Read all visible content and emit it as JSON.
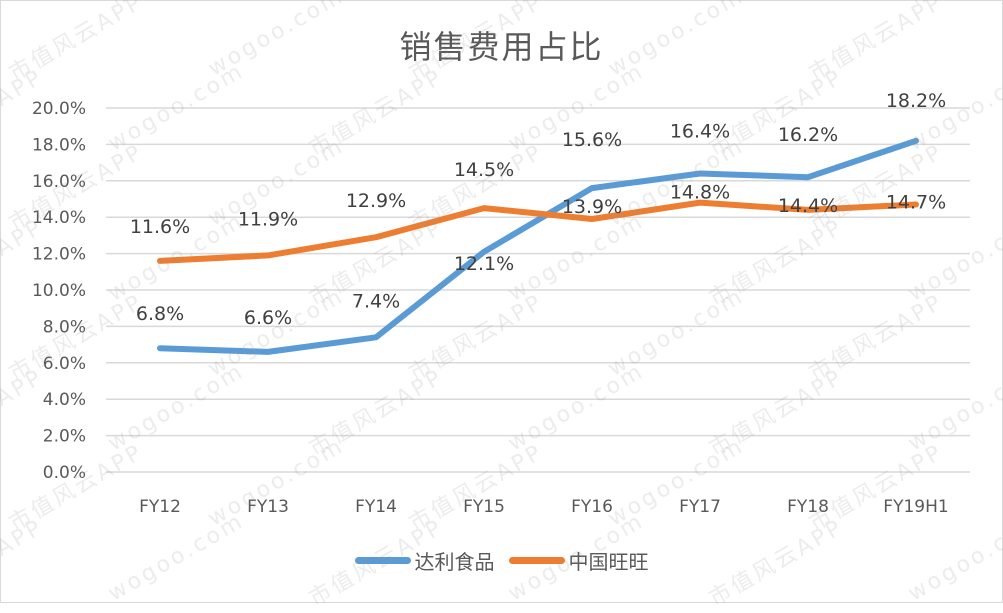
{
  "chart_data": {
    "type": "line",
    "title": "销售费用占比",
    "xlabel": "",
    "ylabel": "",
    "categories": [
      "FY12",
      "FY13",
      "FY14",
      "FY15",
      "FY16",
      "FY17",
      "FY18",
      "FY19H1"
    ],
    "series": [
      {
        "name": "达利食品",
        "color": "#5b9bd5",
        "values": [
          6.8,
          6.6,
          7.4,
          12.1,
          15.6,
          16.4,
          16.2,
          18.2
        ]
      },
      {
        "name": "中国旺旺",
        "color": "#ed7d31",
        "values": [
          11.6,
          11.9,
          12.9,
          14.5,
          13.9,
          14.8,
          14.4,
          14.7
        ]
      }
    ],
    "data_labels": {
      "达利食品": [
        "6.8%",
        "6.6%",
        "7.4%",
        "12.1%",
        "15.6%",
        "16.4%",
        "16.2%",
        "18.2%"
      ],
      "中国旺旺": [
        "11.6%",
        "11.9%",
        "12.9%",
        "14.5%",
        "13.9%",
        "14.8%",
        "14.4%",
        "14.7%"
      ]
    },
    "y_ticks": [
      "0.0%",
      "2.0%",
      "4.0%",
      "6.0%",
      "8.0%",
      "10.0%",
      "12.0%",
      "14.0%",
      "16.0%",
      "18.0%",
      "20.0%"
    ],
    "ylim": [
      0,
      20
    ],
    "grid": true,
    "legend_position": "bottom"
  },
  "legend": [
    {
      "label": "达利食品",
      "color": "#5b9bd5"
    },
    {
      "label": "中国旺旺",
      "color": "#ed7d31"
    }
  ],
  "watermark": [
    "市值风云APP",
    "wogoo.com"
  ]
}
